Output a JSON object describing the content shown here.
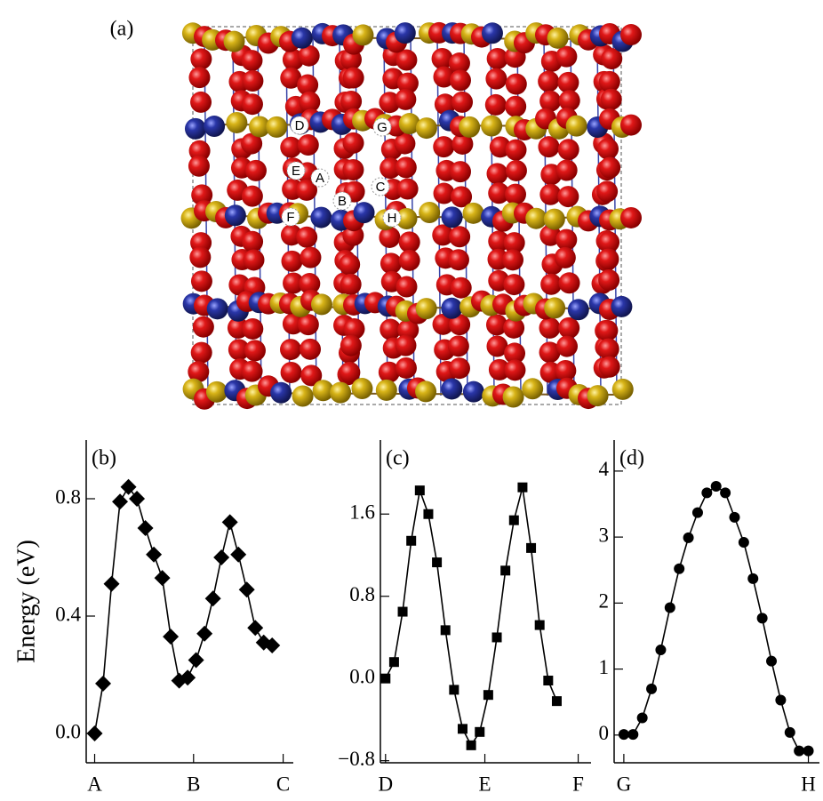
{
  "structure": {
    "panel_label": "(a)",
    "site_labels": [
      "A",
      "B",
      "C",
      "D",
      "E",
      "F",
      "G",
      "H"
    ]
  },
  "chart_data": [
    {
      "type": "line",
      "panel_label": "(b)",
      "ylabel": "Energy (eV)",
      "marker": "diamond",
      "color": "#000000",
      "x": [
        0,
        1,
        2,
        3,
        4,
        5,
        6,
        7,
        8,
        9,
        10,
        11,
        12,
        13,
        14,
        15,
        16,
        17,
        18,
        19,
        20,
        21
      ],
      "values": [
        0.0,
        0.17,
        0.51,
        0.79,
        0.84,
        0.8,
        0.7,
        0.61,
        0.53,
        0.33,
        0.18,
        0.19,
        0.25,
        0.34,
        0.46,
        0.6,
        0.72,
        0.61,
        0.49,
        0.36,
        0.31,
        0.3
      ],
      "xlim": [
        -1,
        23.5
      ],
      "xticks": [
        {
          "value": 0,
          "label": "A"
        },
        {
          "value": 11.7,
          "label": "B"
        },
        {
          "value": 22.3,
          "label": "C"
        }
      ],
      "ylim": [
        -0.1,
        1.0
      ],
      "yticks": [
        {
          "value": 0,
          "label": "0.0"
        },
        0.4,
        0.8
      ]
    },
    {
      "type": "line",
      "panel_label": "(c)",
      "marker": "square",
      "color": "#000000",
      "x": [
        0,
        1,
        2,
        3,
        4,
        5,
        6,
        7,
        8,
        9,
        10,
        11,
        12,
        13,
        14,
        15,
        16,
        17,
        18,
        19,
        20
      ],
      "values": [
        0.0,
        0.16,
        0.65,
        1.34,
        1.83,
        1.6,
        1.13,
        0.47,
        -0.11,
        -0.49,
        -0.65,
        -0.52,
        -0.16,
        0.4,
        1.05,
        1.54,
        1.86,
        1.27,
        0.52,
        -0.02,
        -0.22
      ],
      "xlim": [
        -0.6,
        24
      ],
      "xticks": [
        {
          "value": 0,
          "label": "D"
        },
        {
          "value": 11.6,
          "label": "E"
        },
        {
          "value": 22.5,
          "label": "F"
        }
      ],
      "ylim": [
        -0.82,
        2.32
      ],
      "yticks": [
        {
          "value": -0.8,
          "label": "−0.8"
        },
        {
          "value": 0,
          "label": "0.0"
        },
        0.8,
        1.6
      ]
    },
    {
      "type": "line",
      "panel_label": "(d)",
      "marker": "circle",
      "color": "#000000",
      "x": [
        0,
        1,
        2,
        3,
        4,
        5,
        6,
        7,
        8,
        9,
        10,
        11,
        12,
        13,
        14,
        15,
        16,
        17,
        18,
        19,
        20
      ],
      "values": [
        0.01,
        0.01,
        0.26,
        0.7,
        1.29,
        1.93,
        2.52,
        2.99,
        3.37,
        3.67,
        3.77,
        3.67,
        3.3,
        2.92,
        2.37,
        1.77,
        1.12,
        0.53,
        0.04,
        -0.24,
        -0.24
      ],
      "xlim": [
        -1.05,
        21.2
      ],
      "xticks": [
        {
          "value": 0,
          "label": "G"
        },
        {
          "value": 20,
          "label": "H"
        }
      ],
      "ylim": [
        -0.42,
        4.47
      ],
      "yticks": [
        0,
        1,
        2,
        3,
        4
      ]
    }
  ]
}
